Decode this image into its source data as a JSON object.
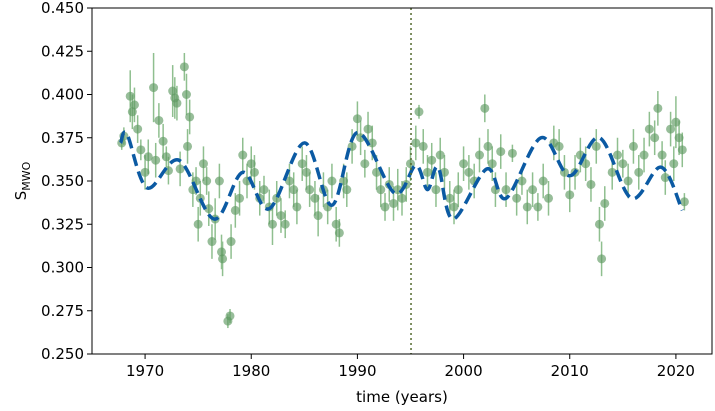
{
  "chart_data": {
    "type": "scatter",
    "xlabel": "time (years)",
    "ylabel": "S",
    "ylabel_subscript": "MWO",
    "xlim": [
      1965,
      2023.4
    ],
    "ylim": [
      0.25,
      0.45
    ],
    "xticks": [
      1970,
      1980,
      1990,
      2000,
      2010,
      2020
    ],
    "yticks": [
      {
        "value": 0.25,
        "label": "0.250"
      },
      {
        "value": 0.275,
        "label": "0.275"
      },
      {
        "value": 0.3,
        "label": "0.300"
      },
      {
        "value": 0.325,
        "label": "0.325"
      },
      {
        "value": 0.35,
        "label": "0.350"
      },
      {
        "value": 0.375,
        "label": "0.375"
      },
      {
        "value": 0.4,
        "label": "0.400"
      },
      {
        "value": 0.425,
        "label": "0.425"
      },
      {
        "value": 0.45,
        "label": "0.450"
      }
    ],
    "vline": {
      "x": 1995.05,
      "color": "#556b2f"
    },
    "points": {
      "color": "#5f9a63",
      "error_color": "#8fbf8f",
      "x": [
        1967.8,
        1968.0,
        1968.6,
        1968.8,
        1969.0,
        1969.3,
        1969.6,
        1970.0,
        1970.3,
        1970.8,
        1971.0,
        1971.3,
        1971.7,
        1972.0,
        1972.2,
        1972.6,
        1972.8,
        1973.0,
        1973.3,
        1973.7,
        1973.9,
        1974.0,
        1974.2,
        1974.5,
        1974.8,
        1975.0,
        1975.2,
        1975.5,
        1975.8,
        1976.0,
        1976.3,
        1976.6,
        1977.0,
        1977.2,
        1977.3,
        1977.8,
        1978.0,
        1978.1,
        1978.5,
        1978.9,
        1979.2,
        1979.6,
        1980.0,
        1980.3,
        1980.8,
        1981.2,
        1981.7,
        1982.0,
        1982.4,
        1982.8,
        1983.2,
        1983.6,
        1984.0,
        1984.3,
        1984.8,
        1985.2,
        1985.5,
        1986.0,
        1986.3,
        1986.8,
        1987.2,
        1987.6,
        1988.0,
        1988.3,
        1988.7,
        1989.0,
        1989.5,
        1990.0,
        1990.3,
        1990.7,
        1991.0,
        1991.4,
        1991.8,
        1992.2,
        1992.6,
        1993.0,
        1993.4,
        1993.8,
        1994.2,
        1994.6,
        1995.0,
        1995.5,
        1995.8,
        1996.2,
        1996.6,
        1997.0,
        1997.4,
        1997.8,
        1998.2,
        1998.7,
        1999.1,
        1999.5,
        2000.0,
        2000.5,
        2001.0,
        2001.5,
        2002.0,
        2002.3,
        2002.7,
        2003.0,
        2003.5,
        2004.0,
        2004.6,
        2005.0,
        2005.5,
        2006.0,
        2006.5,
        2007.0,
        2007.5,
        2008.0,
        2008.5,
        2009.0,
        2009.5,
        2010.0,
        2010.5,
        2011.0,
        2011.5,
        2012.0,
        2012.5,
        2012.8,
        2013.0,
        2013.3,
        2014.0,
        2014.5,
        2015.0,
        2015.5,
        2016.0,
        2016.5,
        2017.0,
        2017.5,
        2018.0,
        2018.3,
        2018.7,
        2019.0,
        2019.5,
        2019.8,
        2020.0,
        2020.3,
        2020.6,
        2020.8
      ],
      "values": [
        0.372,
        0.376,
        0.399,
        0.39,
        0.394,
        0.38,
        0.368,
        0.355,
        0.364,
        0.404,
        0.362,
        0.385,
        0.373,
        0.364,
        0.356,
        0.402,
        0.398,
        0.395,
        0.357,
        0.416,
        0.4,
        0.37,
        0.387,
        0.345,
        0.35,
        0.325,
        0.34,
        0.36,
        0.35,
        0.334,
        0.315,
        0.328,
        0.35,
        0.309,
        0.305,
        0.269,
        0.272,
        0.315,
        0.333,
        0.34,
        0.365,
        0.35,
        0.36,
        0.355,
        0.34,
        0.345,
        0.335,
        0.325,
        0.34,
        0.33,
        0.325,
        0.35,
        0.345,
        0.335,
        0.36,
        0.355,
        0.345,
        0.34,
        0.33,
        0.345,
        0.335,
        0.35,
        0.325,
        0.32,
        0.35,
        0.345,
        0.37,
        0.386,
        0.375,
        0.36,
        0.38,
        0.372,
        0.355,
        0.345,
        0.335,
        0.348,
        0.337,
        0.345,
        0.34,
        0.348,
        0.36,
        0.372,
        0.39,
        0.37,
        0.355,
        0.362,
        0.345,
        0.365,
        0.355,
        0.34,
        0.335,
        0.345,
        0.36,
        0.355,
        0.35,
        0.365,
        0.392,
        0.37,
        0.36,
        0.345,
        0.367,
        0.345,
        0.366,
        0.34,
        0.35,
        0.335,
        0.345,
        0.335,
        0.35,
        0.34,
        0.372,
        0.37,
        0.355,
        0.342,
        0.355,
        0.365,
        0.36,
        0.348,
        0.37,
        0.325,
        0.305,
        0.337,
        0.355,
        0.365,
        0.36,
        0.35,
        0.37,
        0.355,
        0.365,
        0.38,
        0.375,
        0.392,
        0.365,
        0.352,
        0.38,
        0.36,
        0.384,
        0.375,
        0.368,
        0.338
      ],
      "errors": [
        0.004,
        0.005,
        0.015,
        0.01,
        0.01,
        0.008,
        0.006,
        0.01,
        0.01,
        0.02,
        0.01,
        0.01,
        0.01,
        0.006,
        0.008,
        0.015,
        0.012,
        0.01,
        0.01,
        0.008,
        0.012,
        0.01,
        0.01,
        0.01,
        0.008,
        0.01,
        0.01,
        0.01,
        0.008,
        0.01,
        0.01,
        0.012,
        0.01,
        0.01,
        0.01,
        0.004,
        0.004,
        0.01,
        0.01,
        0.01,
        0.01,
        0.01,
        0.01,
        0.01,
        0.01,
        0.008,
        0.01,
        0.012,
        0.01,
        0.01,
        0.008,
        0.01,
        0.01,
        0.01,
        0.01,
        0.01,
        0.01,
        0.01,
        0.012,
        0.01,
        0.01,
        0.01,
        0.01,
        0.008,
        0.01,
        0.01,
        0.01,
        0.01,
        0.01,
        0.008,
        0.01,
        0.01,
        0.01,
        0.01,
        0.008,
        0.01,
        0.01,
        0.012,
        0.01,
        0.01,
        0.01,
        0.01,
        0.004,
        0.01,
        0.01,
        0.01,
        0.01,
        0.01,
        0.01,
        0.01,
        0.01,
        0.01,
        0.01,
        0.01,
        0.01,
        0.01,
        0.008,
        0.01,
        0.01,
        0.01,
        0.01,
        0.01,
        0.005,
        0.01,
        0.008,
        0.01,
        0.01,
        0.008,
        0.01,
        0.01,
        0.01,
        0.01,
        0.01,
        0.01,
        0.01,
        0.01,
        0.01,
        0.01,
        0.01,
        0.01,
        0.01,
        0.01,
        0.01,
        0.01,
        0.008,
        0.01,
        0.01,
        0.01,
        0.01,
        0.01,
        0.01,
        0.01,
        0.008,
        0.01,
        0.01,
        0.01,
        0.015,
        0.01,
        0.01,
        0.005
      ]
    },
    "curve": {
      "color": "#0b5aa3",
      "x": [
        1967.7,
        1968.3,
        1970.2,
        1973.2,
        1976.5,
        1979.2,
        1981.7,
        1985.0,
        1987.6,
        1990.0,
        1993.5,
        1995.5,
        1996.6,
        1997.6,
        1999.0,
        2002.2,
        2004.0,
        2007.3,
        2010.0,
        2012.8,
        2015.8,
        2018.6,
        2020.6
      ],
      "values": [
        0.372,
        0.377,
        0.346,
        0.362,
        0.328,
        0.355,
        0.334,
        0.372,
        0.336,
        0.378,
        0.343,
        0.359,
        0.345,
        0.358,
        0.328,
        0.357,
        0.34,
        0.375,
        0.353,
        0.375,
        0.34,
        0.358,
        0.333
      ]
    }
  }
}
